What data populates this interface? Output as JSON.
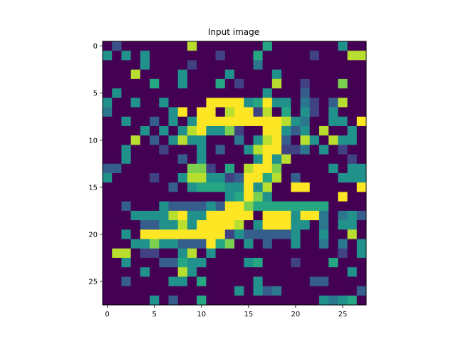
{
  "chart_data": {
    "type": "heatmap",
    "title": "Input image",
    "xlabel": "",
    "ylabel": "",
    "colormap": "viridis",
    "value_range": [
      0,
      1
    ],
    "rows": 28,
    "cols": 28,
    "xlim": [
      -0.5,
      27.5
    ],
    "ylim": [
      27.5,
      -0.5
    ],
    "x_ticks": [
      0,
      5,
      10,
      15,
      20,
      25
    ],
    "y_ticks": [
      0,
      5,
      10,
      15,
      20,
      25
    ],
    "grid": false,
    "values": [
      [
        0,
        0.25,
        0,
        0,
        0,
        0,
        0,
        0,
        0,
        0.9,
        0,
        0,
        0,
        0,
        0,
        0,
        0,
        0.6,
        0,
        0,
        0,
        0,
        0,
        0,
        0,
        0.5,
        0,
        0
      ],
      [
        0.5,
        0,
        0.5,
        0,
        0.5,
        0,
        0,
        0,
        0,
        0,
        0,
        0,
        0.2,
        0,
        0,
        0,
        0.6,
        0,
        0,
        0,
        0,
        0,
        0.2,
        0,
        0,
        0,
        0.9,
        0.9
      ],
      [
        0,
        0,
        0,
        0,
        0.5,
        0,
        0,
        0,
        0,
        0.2,
        0,
        0,
        0,
        0,
        0,
        0,
        0.4,
        0,
        0,
        0,
        0,
        0,
        0,
        0,
        0,
        0,
        0,
        0
      ],
      [
        0,
        0,
        0,
        0.9,
        0,
        0,
        0,
        0,
        0.5,
        0,
        0,
        0,
        0,
        0.5,
        0,
        0,
        0,
        0,
        0.5,
        0,
        0,
        0,
        0,
        0,
        0,
        0,
        0,
        0
      ],
      [
        0,
        0,
        0,
        0,
        0,
        0.6,
        0,
        0,
        0.5,
        0,
        0,
        0,
        0.6,
        0,
        0.2,
        0,
        0,
        0,
        0.9,
        0,
        0,
        0.2,
        0,
        0,
        0,
        0.8,
        0,
        0
      ],
      [
        0,
        0.5,
        0,
        0,
        0,
        0,
        0,
        0,
        0,
        0,
        0,
        0,
        0,
        0,
        0,
        0,
        0,
        0.5,
        0,
        0,
        0,
        0.3,
        0,
        0,
        0,
        0,
        0,
        0
      ],
      [
        0.5,
        0,
        0,
        0.5,
        0,
        0,
        0.5,
        0,
        0,
        0,
        0,
        1,
        1,
        1,
        1,
        0.5,
        0.6,
        1,
        0.5,
        0.5,
        0,
        0.4,
        0.2,
        0,
        0.3,
        0.9,
        0,
        0
      ],
      [
        0.4,
        0,
        0,
        0,
        0,
        0,
        0,
        0.5,
        1,
        0,
        1,
        1,
        0,
        0.9,
        1,
        1,
        0.2,
        0.9,
        0,
        0.6,
        0,
        0.5,
        0.2,
        0,
        0.5,
        0,
        0,
        0
      ],
      [
        0,
        0,
        0.5,
        0,
        0,
        0.3,
        0,
        0.5,
        0,
        0.5,
        1,
        1,
        1,
        1,
        1,
        1,
        1,
        1,
        1,
        0.9,
        0.5,
        0.4,
        0,
        0,
        0.5,
        0.5,
        0,
        1
      ],
      [
        0,
        0,
        0,
        0,
        0.5,
        0,
        0.5,
        0,
        0.5,
        0.9,
        1,
        0.5,
        0.5,
        0.8,
        0.2,
        0,
        0,
        1,
        1,
        0.5,
        0.3,
        0.5,
        0,
        0.9,
        0,
        0,
        0.5,
        0
      ],
      [
        0,
        0,
        0,
        0.9,
        0,
        0.3,
        0,
        0.5,
        0.9,
        0.5,
        0.5,
        0,
        0,
        0,
        0.4,
        0,
        0.5,
        0.9,
        1,
        0.3,
        0,
        0.9,
        0.5,
        0,
        0.9,
        0.5,
        0.5,
        0
      ],
      [
        0,
        0,
        0.5,
        0,
        0,
        0,
        0.2,
        0,
        0,
        0,
        0.5,
        0,
        0.3,
        0,
        0,
        0.5,
        0.9,
        1,
        1,
        0.2,
        0.2,
        0.4,
        0,
        0.5,
        0,
        0.2,
        0,
        0
      ],
      [
        0,
        0,
        0.5,
        0,
        0,
        0,
        0,
        0,
        0.3,
        0,
        0.5,
        0,
        0,
        0,
        0,
        0,
        0.5,
        1,
        0.5,
        0.9,
        0,
        0,
        0,
        0,
        0,
        0,
        0.2,
        0
      ],
      [
        0.3,
        0.3,
        0,
        0,
        0,
        0,
        0,
        0,
        0,
        0.8,
        0.8,
        0.2,
        0,
        0.6,
        0,
        0.9,
        1,
        1,
        0.8,
        0,
        0,
        0,
        0,
        0,
        0.5,
        0,
        0.5,
        0.5
      ],
      [
        0.5,
        0,
        0,
        0,
        0,
        0.2,
        0,
        0,
        0.5,
        0.9,
        0.9,
        0.5,
        0.5,
        0.2,
        0.3,
        1,
        1,
        0.6,
        0.9,
        0,
        0.3,
        0,
        0,
        0,
        0,
        0.5,
        0.5,
        0.5
      ],
      [
        0,
        0,
        0,
        0,
        0,
        0,
        0,
        0.3,
        0,
        0.5,
        0.6,
        0.6,
        0.6,
        0.5,
        0.5,
        1,
        0.5,
        0.9,
        0,
        0,
        1,
        1,
        0,
        0,
        0,
        0,
        0,
        1
      ],
      [
        0,
        0,
        0,
        0,
        0,
        0,
        0,
        0,
        0,
        0,
        0,
        0,
        0,
        0.5,
        0.6,
        1,
        0.8,
        0.5,
        0,
        0,
        0,
        0,
        0,
        0,
        0,
        1,
        0,
        0
      ],
      [
        0,
        0,
        0.3,
        0,
        0,
        0,
        0.5,
        0.3,
        0.3,
        0.3,
        0.3,
        0.5,
        0.3,
        1,
        1,
        0.8,
        0.6,
        0.6,
        0.6,
        0.6,
        0.6,
        0.6,
        0.6,
        0.6,
        0,
        0,
        0,
        0
      ],
      [
        0,
        0,
        0,
        0.5,
        0.5,
        0.5,
        0.5,
        0.9,
        1,
        0.5,
        0.5,
        1,
        1,
        1,
        1,
        1,
        0,
        1,
        1,
        1,
        0.5,
        1,
        1,
        0.4,
        0,
        0.4,
        0.5,
        0.3
      ],
      [
        0,
        0,
        0,
        0,
        0.3,
        0.3,
        0.5,
        0.5,
        0.9,
        0.5,
        1,
        1,
        1,
        1,
        0.9,
        0,
        0.5,
        1,
        1,
        1,
        0.5,
        0.5,
        0,
        0.4,
        0,
        0.5,
        0.5,
        0
      ],
      [
        0,
        0,
        0.5,
        0,
        1,
        1,
        1,
        1,
        1,
        1,
        1,
        1,
        1,
        0.2,
        0.5,
        0.3,
        0.3,
        0.3,
        0.3,
        0.3,
        0.5,
        0,
        0,
        0.5,
        0,
        0,
        0.9,
        0
      ],
      [
        0,
        0,
        0,
        0.5,
        0.5,
        0.8,
        0.5,
        0.5,
        0.3,
        0.3,
        0.3,
        1,
        0.6,
        0.8,
        0,
        0.5,
        0,
        0.3,
        0,
        0,
        0.5,
        0,
        0,
        0.4,
        0,
        0.4,
        0,
        0.5
      ],
      [
        0,
        0.9,
        0.9,
        0,
        0.2,
        0.2,
        0,
        0,
        0.5,
        0.9,
        0,
        0.5,
        0,
        0,
        0,
        0,
        0,
        0,
        0,
        0,
        0,
        0,
        0,
        0,
        0,
        0.2,
        0,
        0.5
      ],
      [
        0,
        0,
        0.5,
        0,
        0,
        0,
        0.3,
        0.3,
        0.6,
        0.5,
        0.5,
        0,
        0,
        0,
        0,
        0.5,
        0.6,
        0,
        0,
        0,
        0.2,
        0,
        0,
        0,
        0.6,
        0,
        0,
        0
      ],
      [
        0,
        0,
        0,
        0,
        0.5,
        0,
        0,
        0,
        0.9,
        0.5,
        0,
        0,
        0,
        0,
        0,
        0,
        0,
        0,
        0,
        0,
        0,
        0,
        0,
        0,
        0,
        0,
        0.5,
        0
      ],
      [
        0,
        0,
        0.3,
        0,
        0,
        0,
        0,
        0.5,
        0.5,
        0,
        0.6,
        0,
        0,
        0,
        0,
        0,
        0.5,
        0,
        0,
        0,
        0,
        0,
        0.3,
        0.3,
        0,
        0,
        0,
        0
      ],
      [
        0,
        0,
        0,
        0,
        0,
        0,
        0,
        0,
        0,
        0,
        0,
        0,
        0,
        0,
        0.5,
        0,
        0.5,
        0.3,
        0.4,
        0,
        0,
        0,
        0,
        0,
        0,
        0,
        0,
        0.3
      ],
      [
        0,
        0,
        0,
        0,
        0,
        0.5,
        0,
        0.3,
        0,
        0,
        0.6,
        0,
        0,
        0,
        0,
        0,
        0,
        0,
        0,
        0,
        0,
        0,
        0,
        0.5,
        0.4,
        0.5,
        0.6,
        0
      ]
    ]
  }
}
